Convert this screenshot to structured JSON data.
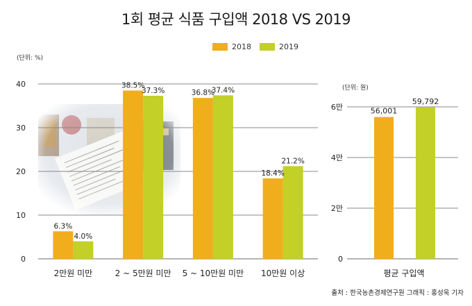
{
  "title": "1회 평균 식품 구입액 2018 VS 2019",
  "legend": {
    "y2018": "2018",
    "y2019": "2019"
  },
  "colors": {
    "y2018": "#F0AE1C",
    "y2019": "#C2D027",
    "grid": "#888888",
    "label": "#222222"
  },
  "left_unit": "(단위: %)",
  "right_unit": "(단위: 원)",
  "source": "출처 : 한국농촌경제연구원 그래픽 : 홍성욱 기자",
  "chart_data": [
    {
      "type": "bar",
      "title": "",
      "ylabel": "(단위: %)",
      "ylim": [
        0,
        40
      ],
      "yticks": [
        "0",
        "10",
        "20",
        "30",
        "40"
      ],
      "categories": [
        "2만원 미만",
        "2 ~ 5만원 미만",
        "5 ~ 10만원 미만",
        "10만원 이상"
      ],
      "series": [
        {
          "name": "2018",
          "values": [
            6.3,
            38.5,
            36.8,
            18.4
          ],
          "labels": [
            "6.3%",
            "38.5%",
            "36.8%",
            "18.4%"
          ]
        },
        {
          "name": "2019",
          "values": [
            4.0,
            37.3,
            37.4,
            21.2
          ],
          "labels": [
            "4.0%",
            "37.3%",
            "37.4%",
            "21.2%"
          ]
        }
      ],
      "grid": true
    },
    {
      "type": "bar",
      "title": "",
      "ylabel": "(단위: 원)",
      "ylim": [
        0,
        60000
      ],
      "yticks": [
        "0",
        "2만",
        "4만",
        "6만"
      ],
      "categories": [
        "평균 구입액"
      ],
      "series": [
        {
          "name": "2018",
          "values": [
            56001
          ],
          "labels": [
            "56,001"
          ]
        },
        {
          "name": "2019",
          "values": [
            59792
          ],
          "labels": [
            "59,792"
          ]
        }
      ],
      "grid": true
    }
  ]
}
